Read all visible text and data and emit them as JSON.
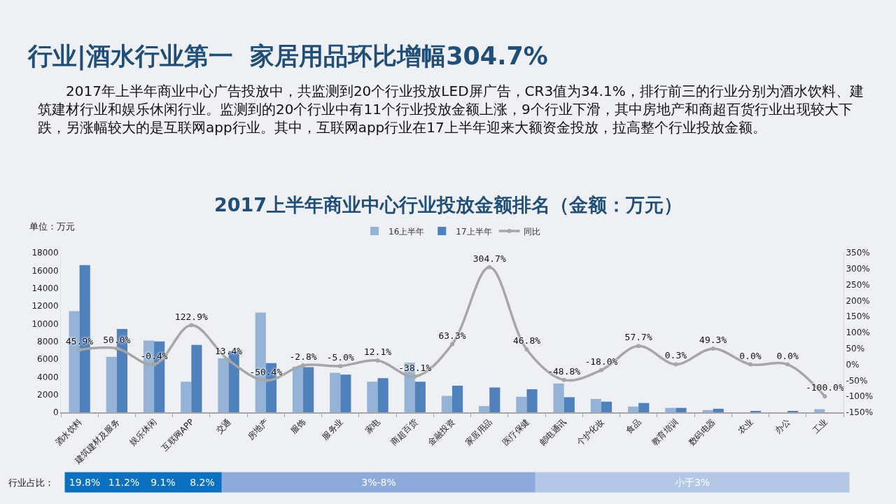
{
  "chart_data": {
    "type": "bar",
    "title": "行业|酒水行业第一  家居用品环比增幅304.7%",
    "subtitle": "2017年上半年商业中心广告投放中，共监测到20个行业投放LED屏广告，CR3值为34.1%，排行前三的行业分别为酒水饮料、建筑建材行业和娱乐休闲行业。监测到的20个行业中有11个行业投放金额上涨，9个行业下滑，其中房地产和商超百货行业出现较大下跌，另涨幅较大的是互联网app行业。其中，互联网app行业在17上半年迎来大额资金投放，拉高整个行业投放金额。",
    "ylabel": "单位：万元",
    "annotations": [
      "2017上半年商业中心行业投放金额排名（金额：万元）",
      "行业占比：",
      "19.8%",
      "11.2%",
      "9.1%",
      "8.2%",
      "3%-8%",
      "小于3%"
    ],
    "categories": [
      "酒水饮料",
      "建筑建材及服务",
      "娱乐休闲",
      "互联网APP",
      "交通",
      "房地产",
      "服饰",
      "服务业",
      "家电",
      "商超百货",
      "金融投资",
      "家居用品",
      "医疗保健",
      "邮电通讯",
      "个护化妆",
      "食品",
      "教育培训",
      "数码电器",
      "农业",
      "办公",
      "工业"
    ],
    "series": [
      {
        "name": "16上半年",
        "color": "#95b3d7",
        "values": [
          11400,
          6250,
          8100,
          3450,
          6100,
          11250,
          5150,
          4450,
          3450,
          5600,
          1850,
          700,
          1750,
          3250,
          1500,
          650,
          500,
          250,
          0,
          0,
          350
        ]
      },
      {
        "name": "17上半年",
        "color": "#4f81bd",
        "values": [
          16600,
          9400,
          8000,
          7600,
          6900,
          5550,
          5100,
          4250,
          3850,
          3450,
          3000,
          2800,
          2600,
          1700,
          1200,
          1050,
          500,
          400,
          100,
          100,
          0
        ]
      },
      {
        "name": "同比",
        "type": "line",
        "axis": "y2",
        "color": "#a6a6a6",
        "values": [
          45.9,
          50.0,
          -0.4,
          122.9,
          13.4,
          -50.4,
          -2.8,
          -5.0,
          12.1,
          -38.1,
          63.3,
          304.7,
          46.8,
          -48.8,
          -18.0,
          57.7,
          0.3,
          49.3,
          0.0,
          0.0,
          -100.0
        ],
        "value_labels": [
          "45.9%",
          "50.0%",
          "-0.4%",
          "122.9%",
          "13.4%",
          "-50.4%",
          "-2.8%",
          "-5.0%",
          "12.1%",
          "-38.1%",
          "63.3%",
          "304.7%",
          "46.8%",
          "-48.8%",
          "-18.0%",
          "57.7%",
          "0.3%",
          "49.3%",
          "0.0%",
          "0.0%",
          "-100.0%"
        ]
      }
    ],
    "ylim": [
      0,
      18000
    ],
    "yticks": [
      0,
      2000,
      4000,
      6000,
      8000,
      10000,
      12000,
      14000,
      16000,
      18000
    ],
    "y2lim": [
      -150,
      350
    ],
    "y2ticks": [
      {
        "value": -150,
        "label": "-150%"
      },
      {
        "value": -100,
        "label": "-100%"
      },
      {
        "value": -50,
        "label": "-50%"
      },
      {
        "value": 0,
        "label": "0%"
      },
      {
        "value": 50,
        "label": "50%"
      },
      {
        "value": 100,
        "label": "100%"
      },
      {
        "value": 150,
        "label": "150%"
      },
      {
        "value": 200,
        "label": "200%"
      },
      {
        "value": 250,
        "label": "250%"
      },
      {
        "value": 300,
        "label": "300%"
      },
      {
        "value": 350,
        "label": "350%"
      }
    ],
    "legend": "top",
    "marker": "circle"
  }
}
